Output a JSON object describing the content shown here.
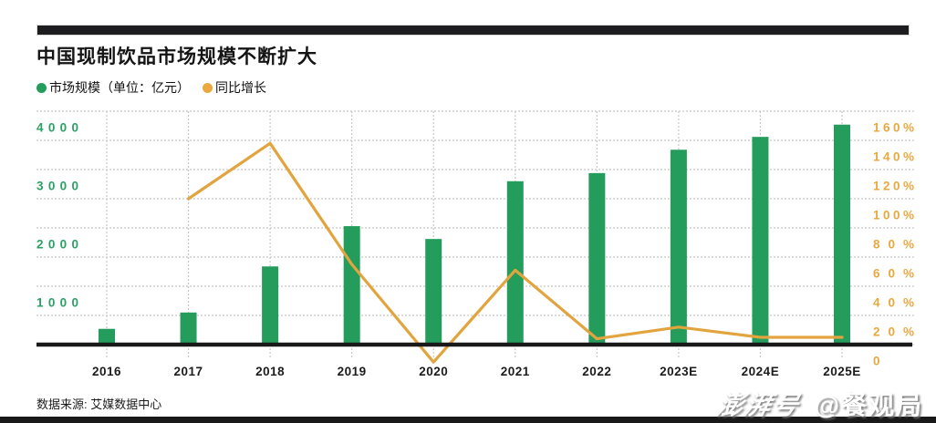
{
  "header": {
    "title": "中国现制饮品市场规模不断扩大"
  },
  "legend": {
    "items": [
      {
        "label": "市场规模（单位：亿元）",
        "color": "#249c5b"
      },
      {
        "label": "同比增长",
        "color": "#eaa83f"
      }
    ]
  },
  "chart_data": {
    "type": "bar",
    "title": "中国现制饮品市场规模不断扩大",
    "categories": [
      "2016",
      "2017",
      "2018",
      "2019",
      "2020",
      "2021",
      "2022",
      "2023E",
      "2024E",
      "2025E"
    ],
    "series": [
      {
        "name": "市场规模",
        "type": "bar",
        "unit": "亿元",
        "axis": "left",
        "values": [
          270,
          550,
          1340,
          2030,
          1810,
          2800,
          2940,
          3340,
          3560,
          3770
        ]
      },
      {
        "name": "同比增长",
        "type": "line",
        "unit": "%",
        "axis": "right",
        "values": [
          null,
          100,
          138,
          55,
          -12,
          51,
          4,
          12,
          5,
          5
        ]
      }
    ],
    "left_axis": {
      "ticks": [
        "4000",
        "3000",
        "2000",
        "1000"
      ],
      "range": [
        0,
        4000
      ],
      "gridline_step": 500
    },
    "right_axis": {
      "ticks": [
        "160%",
        "140%",
        "120%",
        "100%",
        "80%",
        "60%",
        "40%",
        "20%",
        "0"
      ],
      "range": [
        0,
        160
      ],
      "gridline_step": 20
    },
    "grid": "dotted",
    "legend_position": "top-left"
  },
  "colors": {
    "bar_green": "#249c5b",
    "line_orange": "#e2a43e",
    "left_axis_green": "#2ba063",
    "right_axis_orange": "#e9a83f",
    "gridline_gray": "#c8c8c8",
    "axis_black": "#191919",
    "year_label": "#1c1c1c"
  },
  "footer": {
    "source_note": "数据来源: 艾媒数据中心"
  },
  "watermark": {
    "brand": "澎湃号",
    "account": "@餐观局"
  }
}
